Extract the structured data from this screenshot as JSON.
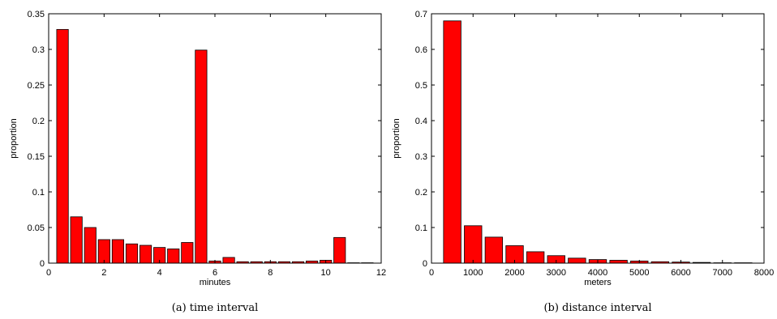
{
  "chart_data": [
    {
      "type": "bar",
      "caption": "(a) time interval",
      "xlabel": "minutes",
      "ylabel": "proportion",
      "xlim": [
        0,
        12
      ],
      "ylim": [
        0,
        0.35
      ],
      "xticks": [
        "0",
        "2",
        "4",
        "6",
        "8",
        "10",
        "12"
      ],
      "yticks": [
        "0",
        "0.05",
        "0.1",
        "0.15",
        "0.2",
        "0.25",
        "0.3",
        "0.35"
      ],
      "bar_width": 0.42,
      "color": "#ff0000",
      "x": [
        0.5,
        1.0,
        1.5,
        2.0,
        2.5,
        3.0,
        3.5,
        4.0,
        4.5,
        5.0,
        5.5,
        6.0,
        6.5,
        7.0,
        7.5,
        8.0,
        8.5,
        9.0,
        9.5,
        10.0,
        10.5,
        11.0,
        11.5
      ],
      "values": [
        0.328,
        0.065,
        0.05,
        0.033,
        0.033,
        0.027,
        0.025,
        0.022,
        0.02,
        0.029,
        0.299,
        0.003,
        0.008,
        0.002,
        0.002,
        0.002,
        0.002,
        0.002,
        0.003,
        0.004,
        0.036,
        0.0005,
        0.0005
      ],
      "grid": false
    },
    {
      "type": "bar",
      "caption": "(b) distance interval",
      "xlabel": "meters",
      "ylabel": "proportion",
      "xlim": [
        0,
        8000
      ],
      "ylim": [
        0,
        0.7
      ],
      "xticks": [
        "0",
        "1000",
        "2000",
        "3000",
        "4000",
        "5000",
        "6000",
        "7000",
        "8000"
      ],
      "yticks": [
        "0",
        "0.1",
        "0.2",
        "0.3",
        "0.4",
        "0.5",
        "0.6",
        "0.7"
      ],
      "bar_width": 420,
      "color": "#ff0000",
      "x": [
        500,
        1000,
        1500,
        2000,
        2500,
        3000,
        3500,
        4000,
        4500,
        5000,
        5500,
        6000,
        6500,
        7000,
        7500
      ],
      "values": [
        0.68,
        0.105,
        0.073,
        0.049,
        0.032,
        0.021,
        0.014,
        0.01,
        0.008,
        0.006,
        0.004,
        0.003,
        0.002,
        0.001,
        0.001
      ],
      "grid": false
    }
  ]
}
